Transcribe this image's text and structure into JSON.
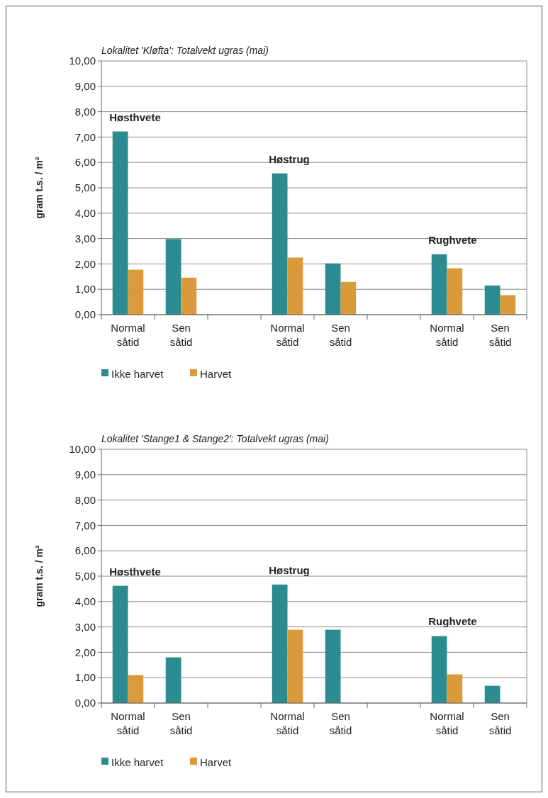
{
  "chart_data": [
    {
      "type": "bar",
      "title": "Lokalitet 'Kløfta': Totalvekt ugras (mai)",
      "ylabel": "gram t.s. / m²",
      "categories": [
        "Normal såtid",
        "Sen såtid",
        null,
        "Normal såtid",
        "Sen såtid",
        null,
        "Normal såtid",
        "Sen såtid"
      ],
      "series": [
        {
          "name": "Ikke harvet",
          "color": "#2a8c8e",
          "values": [
            7.22,
            2.98,
            null,
            5.57,
            2.02,
            null,
            2.38,
            1.15
          ]
        },
        {
          "name": "Harvet",
          "color": "#da9a3a",
          "values": [
            1.77,
            1.46,
            null,
            2.25,
            1.29,
            null,
            1.83,
            0.77
          ]
        }
      ],
      "annotations": [
        "Høsthvete",
        "Høstrug",
        "Rughvete"
      ],
      "ylim": [
        0,
        10
      ],
      "yticks": [
        {
          "value": 0,
          "label": "0,00"
        },
        {
          "value": 1,
          "label": "1,00"
        },
        {
          "value": 2,
          "label": "2,00"
        },
        {
          "value": 3,
          "label": "3,00"
        },
        {
          "value": 4,
          "label": "4,00"
        },
        {
          "value": 5,
          "label": "5,00"
        },
        {
          "value": 6,
          "label": "6,00"
        },
        {
          "value": 7,
          "label": "7,00"
        },
        {
          "value": 8,
          "label": "8,00"
        },
        {
          "value": 9,
          "label": "9,00"
        },
        {
          "value": 10,
          "label": "10,00"
        }
      ],
      "grid": "y",
      "legend": "bottom"
    },
    {
      "type": "bar",
      "title": "Lokalitet 'Stange1 & Stange2': Totalvekt ugras (mai)",
      "ylabel": "gram t.s. / m²",
      "categories": [
        "Normal såtid",
        "Sen såtid",
        null,
        "Normal såtid",
        "Sen såtid",
        null,
        "Normal såtid",
        "Sen såtid"
      ],
      "series": [
        {
          "name": "Ikke harvet",
          "color": "#2a8c8e",
          "values": [
            4.62,
            1.8,
            null,
            4.67,
            2.89,
            null,
            2.64,
            0.68
          ]
        },
        {
          "name": "Harvet",
          "color": "#da9a3a",
          "values": [
            1.1,
            null,
            null,
            2.89,
            null,
            null,
            1.13,
            null
          ]
        }
      ],
      "annotations": [
        "Høsthvete",
        "Høstrug",
        "Rughvete"
      ],
      "ylim": [
        0,
        10
      ],
      "yticks": [
        {
          "value": 0,
          "label": "0,00"
        },
        {
          "value": 1,
          "label": "1,00"
        },
        {
          "value": 2,
          "label": "2,00"
        },
        {
          "value": 3,
          "label": "3,00"
        },
        {
          "value": 4,
          "label": "4,00"
        },
        {
          "value": 5,
          "label": "5,00"
        },
        {
          "value": 6,
          "label": "6,00"
        },
        {
          "value": 7,
          "label": "7,00"
        },
        {
          "value": 8,
          "label": "8,00"
        },
        {
          "value": 9,
          "label": "9,00"
        },
        {
          "value": 10,
          "label": "10,00"
        }
      ],
      "grid": "y",
      "legend": "bottom"
    }
  ]
}
